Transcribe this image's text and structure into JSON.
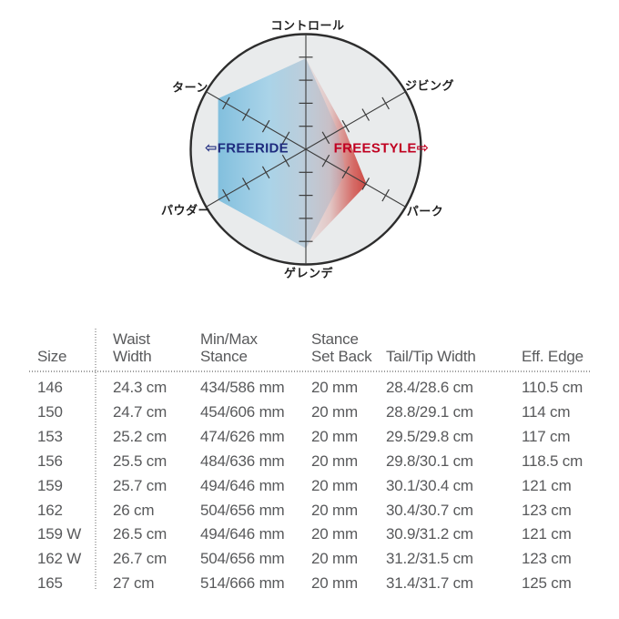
{
  "chart_data": [
    {
      "type": "radar",
      "title": "",
      "axes": [
        "コントロール",
        "ジビング",
        "パーク",
        "ゲレンデ",
        "パウダー",
        "ターン"
      ],
      "axis_max": 1,
      "ticks_per_axis": 4,
      "background": {
        "circle_fill": "#e9ebec",
        "circle_stroke": "#2d2d2d",
        "axis_stroke": "#3d3d3d"
      },
      "series": [
        {
          "name": "FREESTYLE",
          "arrow": "⇨",
          "label_color": "#c00021",
          "values": [
            0.79,
            0.38,
            0.61,
            0.86,
            0.06,
            0.06
          ],
          "gradient": [
            {
              "offset": "0%",
              "color": "#c65a54",
              "opacity": 0
            },
            {
              "offset": "45%",
              "color": "#cd5750",
              "opacity": 0.25
            },
            {
              "offset": "80%",
              "color": "#d1504a",
              "opacity": 0.82
            },
            {
              "offset": "100%",
              "color": "#cb3f39",
              "opacity": 0.95
            }
          ]
        },
        {
          "name": "FREERIDE",
          "arrow": "⇦",
          "label_color": "#1e2b7e",
          "values": [
            0.79,
            0.32,
            0.4,
            0.86,
            0.88,
            0.88
          ],
          "gradient": [
            {
              "offset": "0%",
              "color": "#7fbedd",
              "opacity": 0.97
            },
            {
              "offset": "40%",
              "color": "#a3d1e8",
              "opacity": 0.9
            },
            {
              "offset": "72%",
              "color": "#9db8cd",
              "opacity": 0.55
            },
            {
              "offset": "100%",
              "color": "#93a9c2",
              "opacity": 0.18
            }
          ]
        }
      ]
    },
    {
      "type": "table",
      "headers": [
        "Size",
        "Waist\nWidth",
        "Min/Max\nStance",
        "Stance\nSet Back",
        "Tail/Tip Width",
        "Eff. Edge"
      ],
      "rows": [
        [
          "146",
          "24.3 cm",
          "434/586 mm",
          "20 mm",
          "28.4/28.6 cm",
          "110.5 cm"
        ],
        [
          "150",
          "24.7 cm",
          "454/606 mm",
          "20 mm",
          "28.8/29.1 cm",
          "114 cm"
        ],
        [
          "153",
          "25.2 cm",
          "474/626 mm",
          "20 mm",
          "29.5/29.8 cm",
          "117 cm"
        ],
        [
          "156",
          "25.5 cm",
          "484/636 mm",
          "20 mm",
          "29.8/30.1 cm",
          "118.5 cm"
        ],
        [
          "159",
          "25.7 cm",
          "494/646 mm",
          "20 mm",
          "30.1/30.4 cm",
          "121 cm"
        ],
        [
          "162",
          "26 cm",
          "504/656 mm",
          "20 mm",
          "30.4/30.7 cm",
          "123 cm"
        ],
        [
          "159 W",
          "26.5 cm",
          "494/646 mm",
          "20 mm",
          "30.9/31.2 cm",
          "121 cm"
        ],
        [
          "162 W",
          "26.7 cm",
          "504/656 mm",
          "20 mm",
          "31.2/31.5 cm",
          "123 cm"
        ],
        [
          "165",
          "27 cm",
          "514/666 mm",
          "20 mm",
          "31.4/31.7 cm",
          "125 cm"
        ]
      ]
    }
  ]
}
